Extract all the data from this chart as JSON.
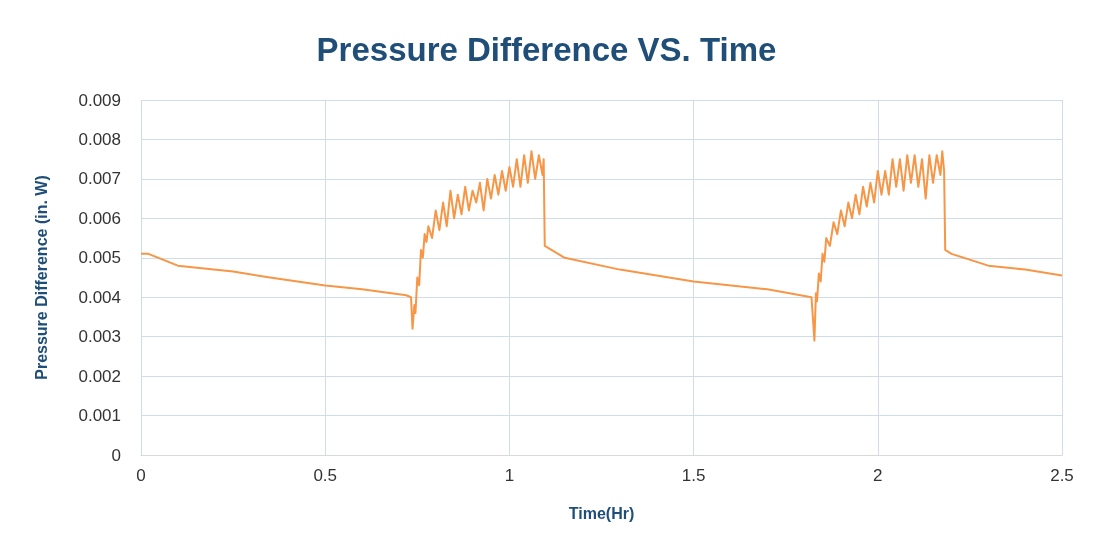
{
  "chart_data": {
    "type": "line",
    "title": "Pressure Difference VS. Time",
    "xlabel": "Time(Hr)",
    "ylabel": "Pressure Difference (in. W)",
    "xlim": [
      0,
      2.5
    ],
    "xticks": [
      0,
      0.5,
      1,
      1.5,
      2,
      2.5
    ],
    "ylim": [
      0,
      0.009
    ],
    "yticks": [
      0,
      0.001,
      0.002,
      0.003,
      0.004,
      0.005,
      0.006,
      0.007,
      0.008,
      0.009
    ],
    "grid": true,
    "marker": "none",
    "line_style": "solid",
    "series": [
      {
        "color": "#f79646",
        "x": [
          0,
          0.02,
          0.1,
          0.25,
          0.35,
          0.5,
          0.6,
          0.72,
          0.733,
          0.737,
          0.742,
          0.745,
          0.75,
          0.755,
          0.76,
          0.765,
          0.77,
          0.775,
          0.78,
          0.79,
          0.8,
          0.81,
          0.82,
          0.83,
          0.84,
          0.85,
          0.86,
          0.87,
          0.88,
          0.89,
          0.9,
          0.91,
          0.92,
          0.93,
          0.94,
          0.95,
          0.96,
          0.97,
          0.98,
          0.99,
          1.0,
          1.01,
          1.02,
          1.03,
          1.04,
          1.05,
          1.06,
          1.07,
          1.08,
          1.09,
          1.093,
          1.096,
          1.15,
          1.3,
          1.5,
          1.7,
          1.82,
          1.828,
          1.832,
          1.835,
          1.84,
          1.845,
          1.85,
          1.855,
          1.86,
          1.87,
          1.88,
          1.89,
          1.9,
          1.91,
          1.92,
          1.93,
          1.94,
          1.95,
          1.96,
          1.97,
          1.98,
          1.99,
          2.0,
          2.01,
          2.02,
          2.03,
          2.04,
          2.05,
          2.06,
          2.07,
          2.08,
          2.09,
          2.1,
          2.11,
          2.12,
          2.13,
          2.14,
          2.15,
          2.16,
          2.17,
          2.175,
          2.18,
          2.183,
          2.2,
          2.3,
          2.4,
          2.5
        ],
        "values": [
          0.0051,
          0.0051,
          0.0048,
          0.00465,
          0.0045,
          0.0043,
          0.0042,
          0.00405,
          0.004,
          0.0032,
          0.0038,
          0.0036,
          0.0045,
          0.0043,
          0.0052,
          0.005,
          0.0056,
          0.0054,
          0.0058,
          0.0055,
          0.0062,
          0.0057,
          0.0064,
          0.0058,
          0.0067,
          0.006,
          0.0066,
          0.0061,
          0.0068,
          0.0062,
          0.0067,
          0.0064,
          0.0069,
          0.0062,
          0.007,
          0.0065,
          0.0071,
          0.0066,
          0.0072,
          0.0067,
          0.0073,
          0.0068,
          0.0075,
          0.0068,
          0.0076,
          0.0069,
          0.0077,
          0.007,
          0.0076,
          0.0071,
          0.0075,
          0.0053,
          0.005,
          0.0047,
          0.0044,
          0.0042,
          0.004,
          0.0029,
          0.0041,
          0.0039,
          0.0046,
          0.0044,
          0.0051,
          0.0049,
          0.0055,
          0.0053,
          0.0059,
          0.0056,
          0.0062,
          0.0058,
          0.0064,
          0.006,
          0.0066,
          0.0061,
          0.0068,
          0.0063,
          0.0069,
          0.0064,
          0.0072,
          0.0066,
          0.0072,
          0.0066,
          0.0075,
          0.0068,
          0.0075,
          0.0067,
          0.0076,
          0.0069,
          0.0076,
          0.0068,
          0.0075,
          0.0065,
          0.0076,
          0.0069,
          0.0076,
          0.0071,
          0.0077,
          0.0072,
          0.0052,
          0.0051,
          0.0048,
          0.0047,
          0.00455
        ]
      }
    ]
  }
}
